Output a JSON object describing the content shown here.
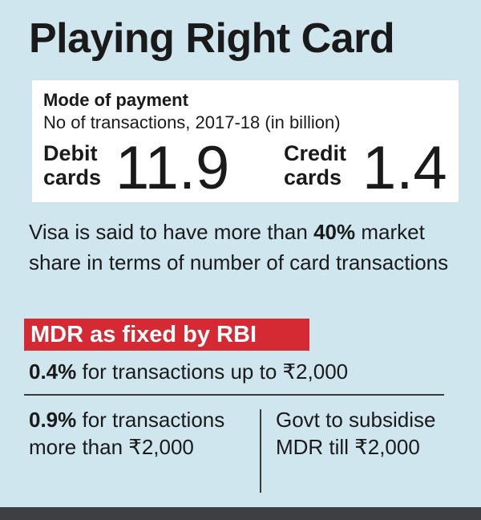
{
  "title": "Playing Right Card",
  "mode": {
    "title": "Mode of payment",
    "subtitle": "No of transactions, 2017-18 (in billion)",
    "debit": {
      "label_line1": "Debit",
      "label_line2": "cards",
      "value": "11.9"
    },
    "credit": {
      "label_line1": "Credit",
      "label_line2": "cards",
      "value": "1.4"
    }
  },
  "visa": {
    "text_before": "Visa is said to have more than ",
    "highlight": "40%",
    "text_after": " market share in terms of number of card transactions"
  },
  "mdr": {
    "title": "MDR as fixed by RBI",
    "rule1_bold": "0.4%",
    "rule1_text": " for transactions up to ₹2,000",
    "rule2_bold": "0.9%",
    "rule2_text": " for transactions more than ₹2,000",
    "govt_text": "Govt to subsidise MDR till ₹2,000"
  },
  "colors": {
    "background": "#cfe6ef",
    "card": "#ffffff",
    "accent_red": "#d52a34",
    "bottom_bar": "#3d3f43"
  }
}
